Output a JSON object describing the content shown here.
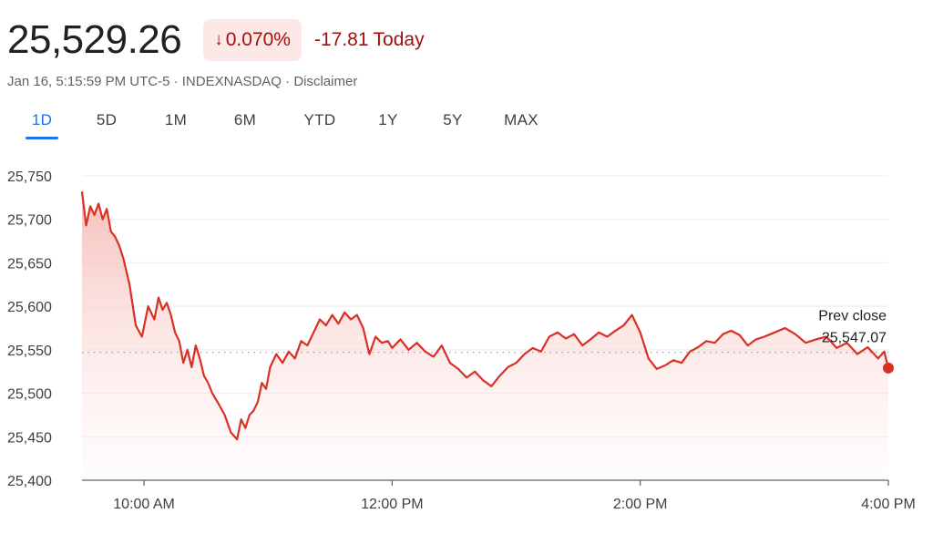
{
  "quote": {
    "price": "25,529.26",
    "change_arrow": "↓",
    "change_pct": "0.070%",
    "change_abs": "-17.81",
    "change_period": "Today",
    "negative_color": "#a50e0e",
    "pill_bg": "#fce8e6"
  },
  "meta": {
    "timestamp": "Jan 16, 5:15:59 PM UTC-5",
    "separator": " · ",
    "exchange": "INDEXNASDAQ",
    "disclaimer": "Disclaimer"
  },
  "ranges": {
    "active": "1D",
    "items": [
      "1D",
      "5D",
      "1M",
      "6M",
      "YTD",
      "1Y",
      "5Y",
      "MAX"
    ]
  },
  "chart_data": {
    "type": "line",
    "title": "",
    "xlabel": "",
    "ylabel": "",
    "ylim": [
      25400,
      25750
    ],
    "y_ticks": [
      "25,750",
      "25,700",
      "25,650",
      "25,600",
      "25,550",
      "25,500",
      "25,450",
      "25,400"
    ],
    "y_tick_values": [
      25750,
      25700,
      25650,
      25600,
      25550,
      25500,
      25450,
      25400
    ],
    "x_ticks": [
      "10:00 AM",
      "12:00 PM",
      "2:00 PM",
      "4:00 PM"
    ],
    "x_tick_values": [
      "10:00",
      "12:00",
      "14:00",
      "16:00"
    ],
    "x_range": [
      "09:30",
      "16:00"
    ],
    "line_color": "#d93025",
    "grid": true,
    "reference_line": {
      "label_line1": "Prev close",
      "label_line2": "25,547.07",
      "value": 25547.07
    },
    "series": [
      {
        "x": [
          "09:30",
          "09:32",
          "09:34",
          "09:36",
          "09:38",
          "09:40",
          "09:42",
          "09:44",
          "09:46",
          "09:48",
          "09:50",
          "09:53",
          "09:56",
          "09:59",
          "10:02",
          "10:05",
          "10:07",
          "10:09",
          "10:11",
          "10:13",
          "10:15",
          "10:17",
          "10:19",
          "10:21",
          "10:23",
          "10:25",
          "10:27",
          "10:29",
          "10:31",
          "10:33",
          "10:36",
          "10:39",
          "10:42",
          "10:45",
          "10:47",
          "10:49",
          "10:51",
          "10:53",
          "10:55",
          "10:57",
          "10:59",
          "11:01",
          "11:04",
          "11:07",
          "11:10",
          "11:13",
          "11:16",
          "11:19",
          "11:22",
          "11:25",
          "11:28",
          "11:31",
          "11:34",
          "11:37",
          "11:40",
          "11:43",
          "11:46",
          "11:49",
          "11:52",
          "11:55",
          "11:58",
          "12:00",
          "12:04",
          "12:08",
          "12:12",
          "12:16",
          "12:20",
          "12:24",
          "12:28",
          "12:32",
          "12:36",
          "12:40",
          "12:44",
          "12:48",
          "12:52",
          "12:56",
          "13:00",
          "13:04",
          "13:08",
          "13:12",
          "13:16",
          "13:20",
          "13:24",
          "13:28",
          "13:32",
          "13:36",
          "13:40",
          "13:44",
          "13:48",
          "13:52",
          "13:56",
          "14:00",
          "14:04",
          "14:08",
          "14:12",
          "14:16",
          "14:20",
          "14:24",
          "14:28",
          "14:32",
          "14:36",
          "14:40",
          "14:44",
          "14:48",
          "14:52",
          "14:56",
          "15:00",
          "15:05",
          "15:10",
          "15:15",
          "15:20",
          "15:25",
          "15:30",
          "15:35",
          "15:40",
          "15:45",
          "15:50",
          "15:55",
          "15:58",
          "16:00"
        ],
        "y": [
          25732,
          25693,
          25715,
          25705,
          25718,
          25700,
          25712,
          25686,
          25680,
          25670,
          25655,
          25625,
          25578,
          25565,
          25600,
          25585,
          25610,
          25596,
          25604,
          25590,
          25570,
          25560,
          25535,
          25550,
          25530,
          25555,
          25540,
          25520,
          25512,
          25500,
          25488,
          25475,
          25455,
          25447,
          25470,
          25460,
          25475,
          25480,
          25490,
          25512,
          25505,
          25530,
          25545,
          25535,
          25548,
          25540,
          25560,
          25555,
          25570,
          25585,
          25578,
          25590,
          25580,
          25593,
          25585,
          25590,
          25575,
          25545,
          25565,
          25558,
          25560,
          25552,
          25562,
          25550,
          25558,
          25548,
          25542,
          25555,
          25535,
          25528,
          25518,
          25525,
          25515,
          25508,
          25520,
          25530,
          25535,
          25545,
          25552,
          25548,
          25565,
          25570,
          25563,
          25568,
          25555,
          25562,
          25570,
          25565,
          25572,
          25578,
          25590,
          25570,
          25540,
          25528,
          25532,
          25538,
          25535,
          25548,
          25553,
          25560,
          25558,
          25568,
          25572,
          25567,
          25555,
          25562,
          25565,
          25570,
          25575,
          25568,
          25558,
          25562,
          25565,
          25552,
          25558,
          25545,
          25553,
          25540,
          25548,
          25529
        ]
      }
    ]
  }
}
